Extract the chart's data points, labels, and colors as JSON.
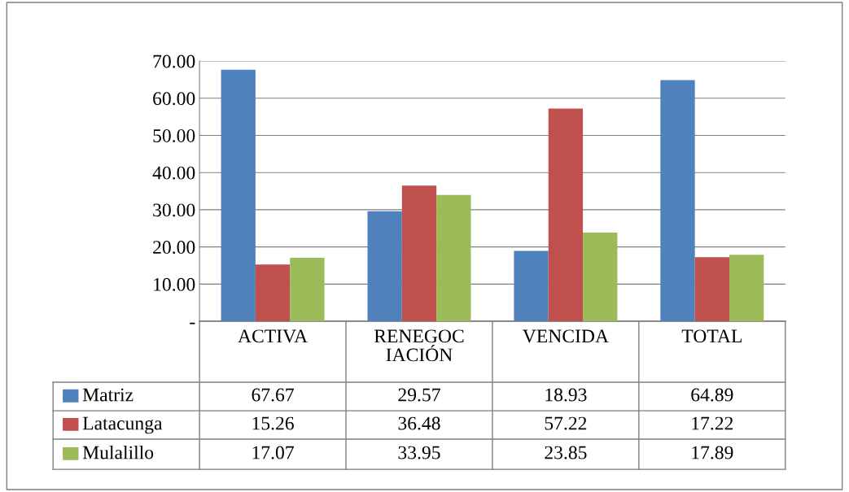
{
  "chart_data": {
    "type": "bar",
    "categories": [
      "ACTIVA",
      "RENEGOC IACIÓN",
      "VENCIDA",
      "TOTAL"
    ],
    "series": [
      {
        "name": "Matriz",
        "color": "#4f81bd",
        "values": [
          67.67,
          29.57,
          18.93,
          64.89
        ]
      },
      {
        "name": "Latacunga",
        "color": "#c0504d",
        "values": [
          15.26,
          36.48,
          57.22,
          17.22
        ]
      },
      {
        "name": "Mulalillo",
        "color": "#9bbb59",
        "values": [
          17.07,
          33.95,
          23.85,
          17.89
        ]
      }
    ],
    "ylim": [
      0,
      70
    ],
    "yticks": [
      {
        "value": 0,
        "label": "-"
      },
      {
        "value": 10,
        "label": "10.00"
      },
      {
        "value": 20,
        "label": "20.00"
      },
      {
        "value": 30,
        "label": "30.00"
      },
      {
        "value": 40,
        "label": "40.00"
      },
      {
        "value": 50,
        "label": "50.00"
      },
      {
        "value": 60,
        "label": "60.00"
      },
      {
        "value": 70,
        "label": "70.00"
      }
    ],
    "grid": "y",
    "legend": "bottom",
    "data_labels": true
  }
}
